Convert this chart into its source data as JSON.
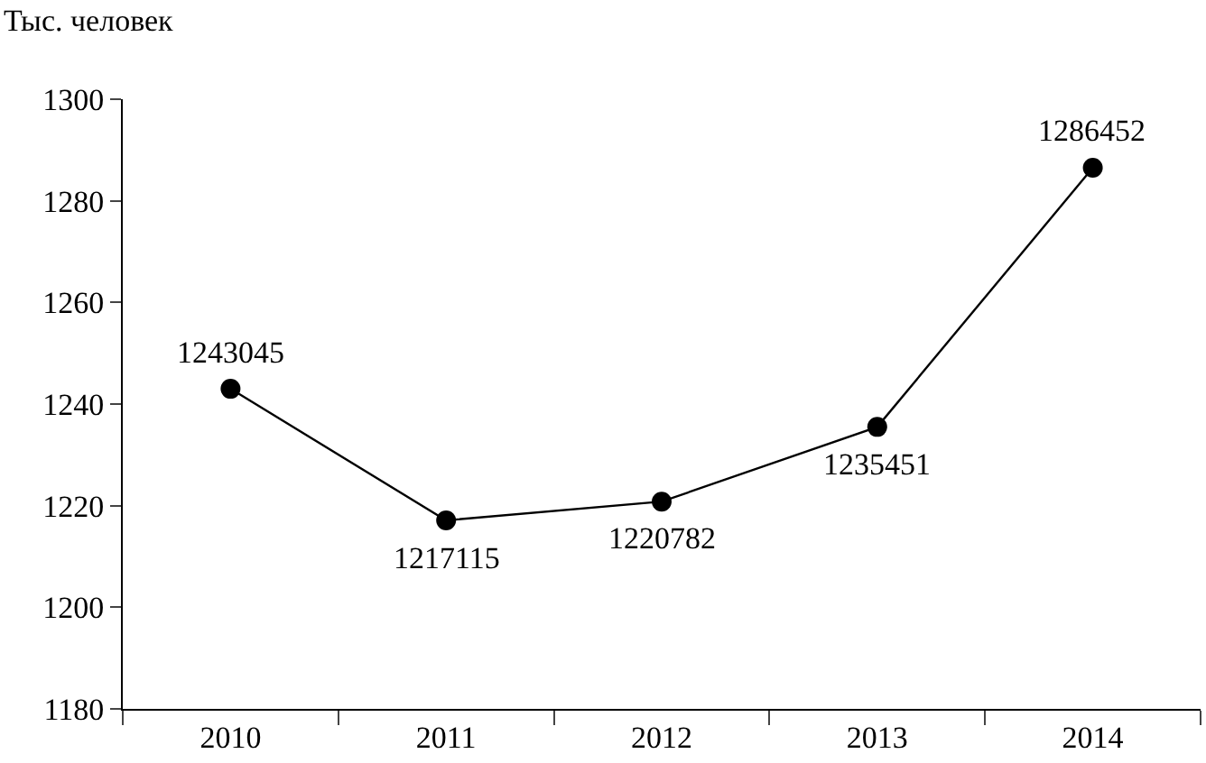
{
  "chart_data": {
    "type": "line",
    "ylabel": "Тыс. человек",
    "categories": [
      "2010",
      "2011",
      "2012",
      "2013",
      "2014"
    ],
    "series": [
      {
        "color": "#000000",
        "values": [
          1243,
          1217.1,
          1220.8,
          1235.5,
          1286.5
        ]
      }
    ],
    "annotations": [
      {
        "text": "1243045",
        "x": "2010",
        "y": 1243
      },
      {
        "text": "1217115",
        "x": "2011",
        "y": 1217.1
      },
      {
        "text": "1220782",
        "x": "2012",
        "y": 1220.8
      },
      {
        "text": "1235451",
        "x": "2013",
        "y": 1235.5
      },
      {
        "text": "1286452",
        "x": "2014",
        "y": 1286.5
      }
    ],
    "ylim": [
      1180,
      1300
    ],
    "yticks": [
      1180,
      1200,
      1220,
      1240,
      1260,
      1280,
      1300
    ],
    "grid": false,
    "legend": false,
    "marker": "circle",
    "line_style": "solid"
  }
}
